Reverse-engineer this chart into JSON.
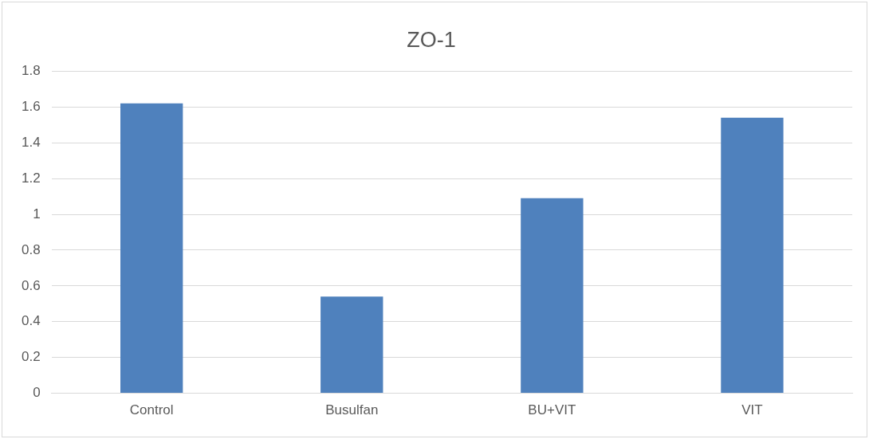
{
  "chart_data": {
    "type": "bar",
    "title": "ZO-1",
    "categories": [
      "Control",
      "Busulfan",
      "BU+VIT",
      "VIT"
    ],
    "values": [
      1.62,
      0.54,
      1.09,
      1.54
    ],
    "color": "#4f81bd",
    "ylim": [
      0,
      1.8
    ],
    "yticks": [
      0,
      0.2,
      0.4,
      0.6,
      0.8,
      1,
      1.2,
      1.4,
      1.6,
      1.8
    ],
    "grid": "y",
    "legend": false
  }
}
